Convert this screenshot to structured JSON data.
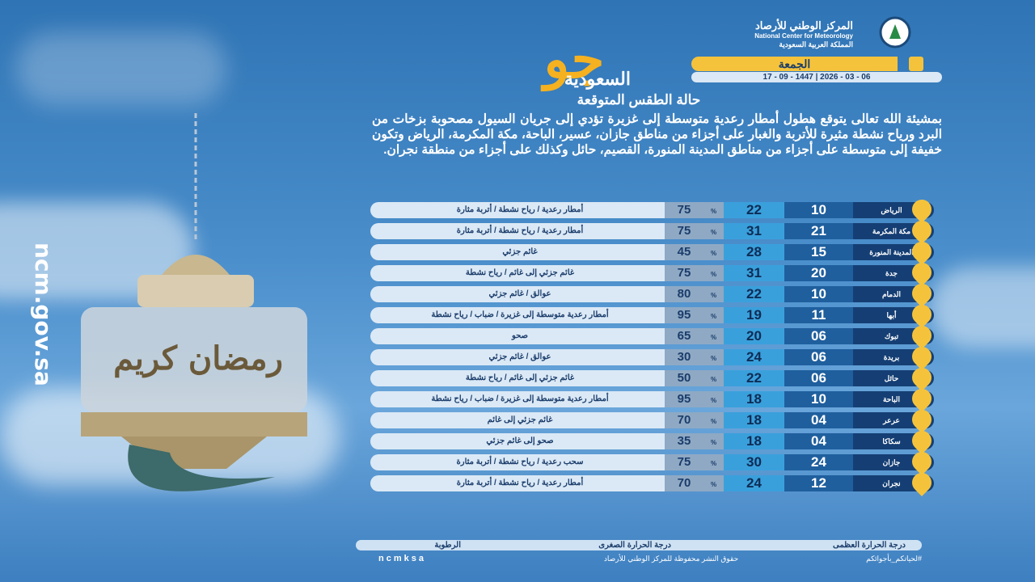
{
  "header": {
    "org_ar": "المركز الوطني للأرصاد",
    "org_en": "National Center for Meteorology",
    "country": "المملكة العربية السعودية",
    "brand_big": "جو",
    "brand_small": "السعودية",
    "day": "الجمعة",
    "date": "17 - 09 - 1447 | 2026 - 03 - 06"
  },
  "section_title": "حالة الطقس المتوقعة",
  "summary": "بمشيئة الله تعالى يتوقع هطول أمطار رعدية متوسطة إلى غزيرة تؤدي إلى جريان السيول مصحوبة بزخات من البرد ورياح نشطة مثيرة للأتربة والغبار على أجزاء من مناطق جازان، عسير، الباحة، مكة المكرمة، الرياض وتكون خفيفة إلى متوسطة على أجزاء من مناطق المدينة المنورة، القصيم، حائل وكذلك على أجزاء من منطقة نجران.",
  "percent": "%",
  "table": {
    "rows": [
      [
        "الرياض",
        "10",
        "22",
        "75",
        "أمطار رعدية / رياح نشطة / أتربة مثارة"
      ],
      [
        "مكة المكرمة",
        "21",
        "31",
        "75",
        "أمطار رعدية / رياح نشطة / أتربة مثارة"
      ],
      [
        "المدينة المنورة",
        "15",
        "28",
        "45",
        "غائم جزئي"
      ],
      [
        "جدة",
        "20",
        "31",
        "75",
        "غائم جزئي إلى غائم / رياح نشطة"
      ],
      [
        "الدمام",
        "10",
        "22",
        "80",
        "عوالق / غائم جزئي"
      ],
      [
        "أبها",
        "11",
        "19",
        "95",
        "أمطار رعدية متوسطة إلى غزيرة / ضباب / رياح نشطة"
      ],
      [
        "تبوك",
        "06",
        "20",
        "65",
        "صحو"
      ],
      [
        "بريدة",
        "06",
        "24",
        "30",
        "عوالق / غائم جزئي"
      ],
      [
        "حائل",
        "06",
        "22",
        "50",
        "غائم جزئي إلى غائم / رياح نشطة"
      ],
      [
        "الباحة",
        "10",
        "18",
        "95",
        "أمطار رعدية متوسطة إلى غزيرة / ضباب / رياح نشطة"
      ],
      [
        "عرعر",
        "04",
        "18",
        "70",
        "غائم جزئي إلى غائم"
      ],
      [
        "سكاكا",
        "04",
        "18",
        "35",
        "صحو إلى غائم جزئي"
      ],
      [
        "جازان",
        "24",
        "30",
        "75",
        "سحب رعدية / رياح نشطة / أتربة مثارة"
      ],
      [
        "نجران",
        "12",
        "24",
        "70",
        "أمطار رعدية / رياح نشطة / أتربة مثارة"
      ]
    ]
  },
  "legend": {
    "max": "درجة الحرارة العظمى",
    "min": "درجة الحرارة الصغرى",
    "humidity": "الرطوبة"
  },
  "footer": {
    "handle": "ncmksa",
    "rights": "حقوق النشر محفوظة للمركز الوطني للأرصاد",
    "hashtag": "#لحياتكم_بأجوائكم"
  },
  "side": {
    "site": "ncm.gov.sa",
    "greeting": "رمضان كريم"
  }
}
